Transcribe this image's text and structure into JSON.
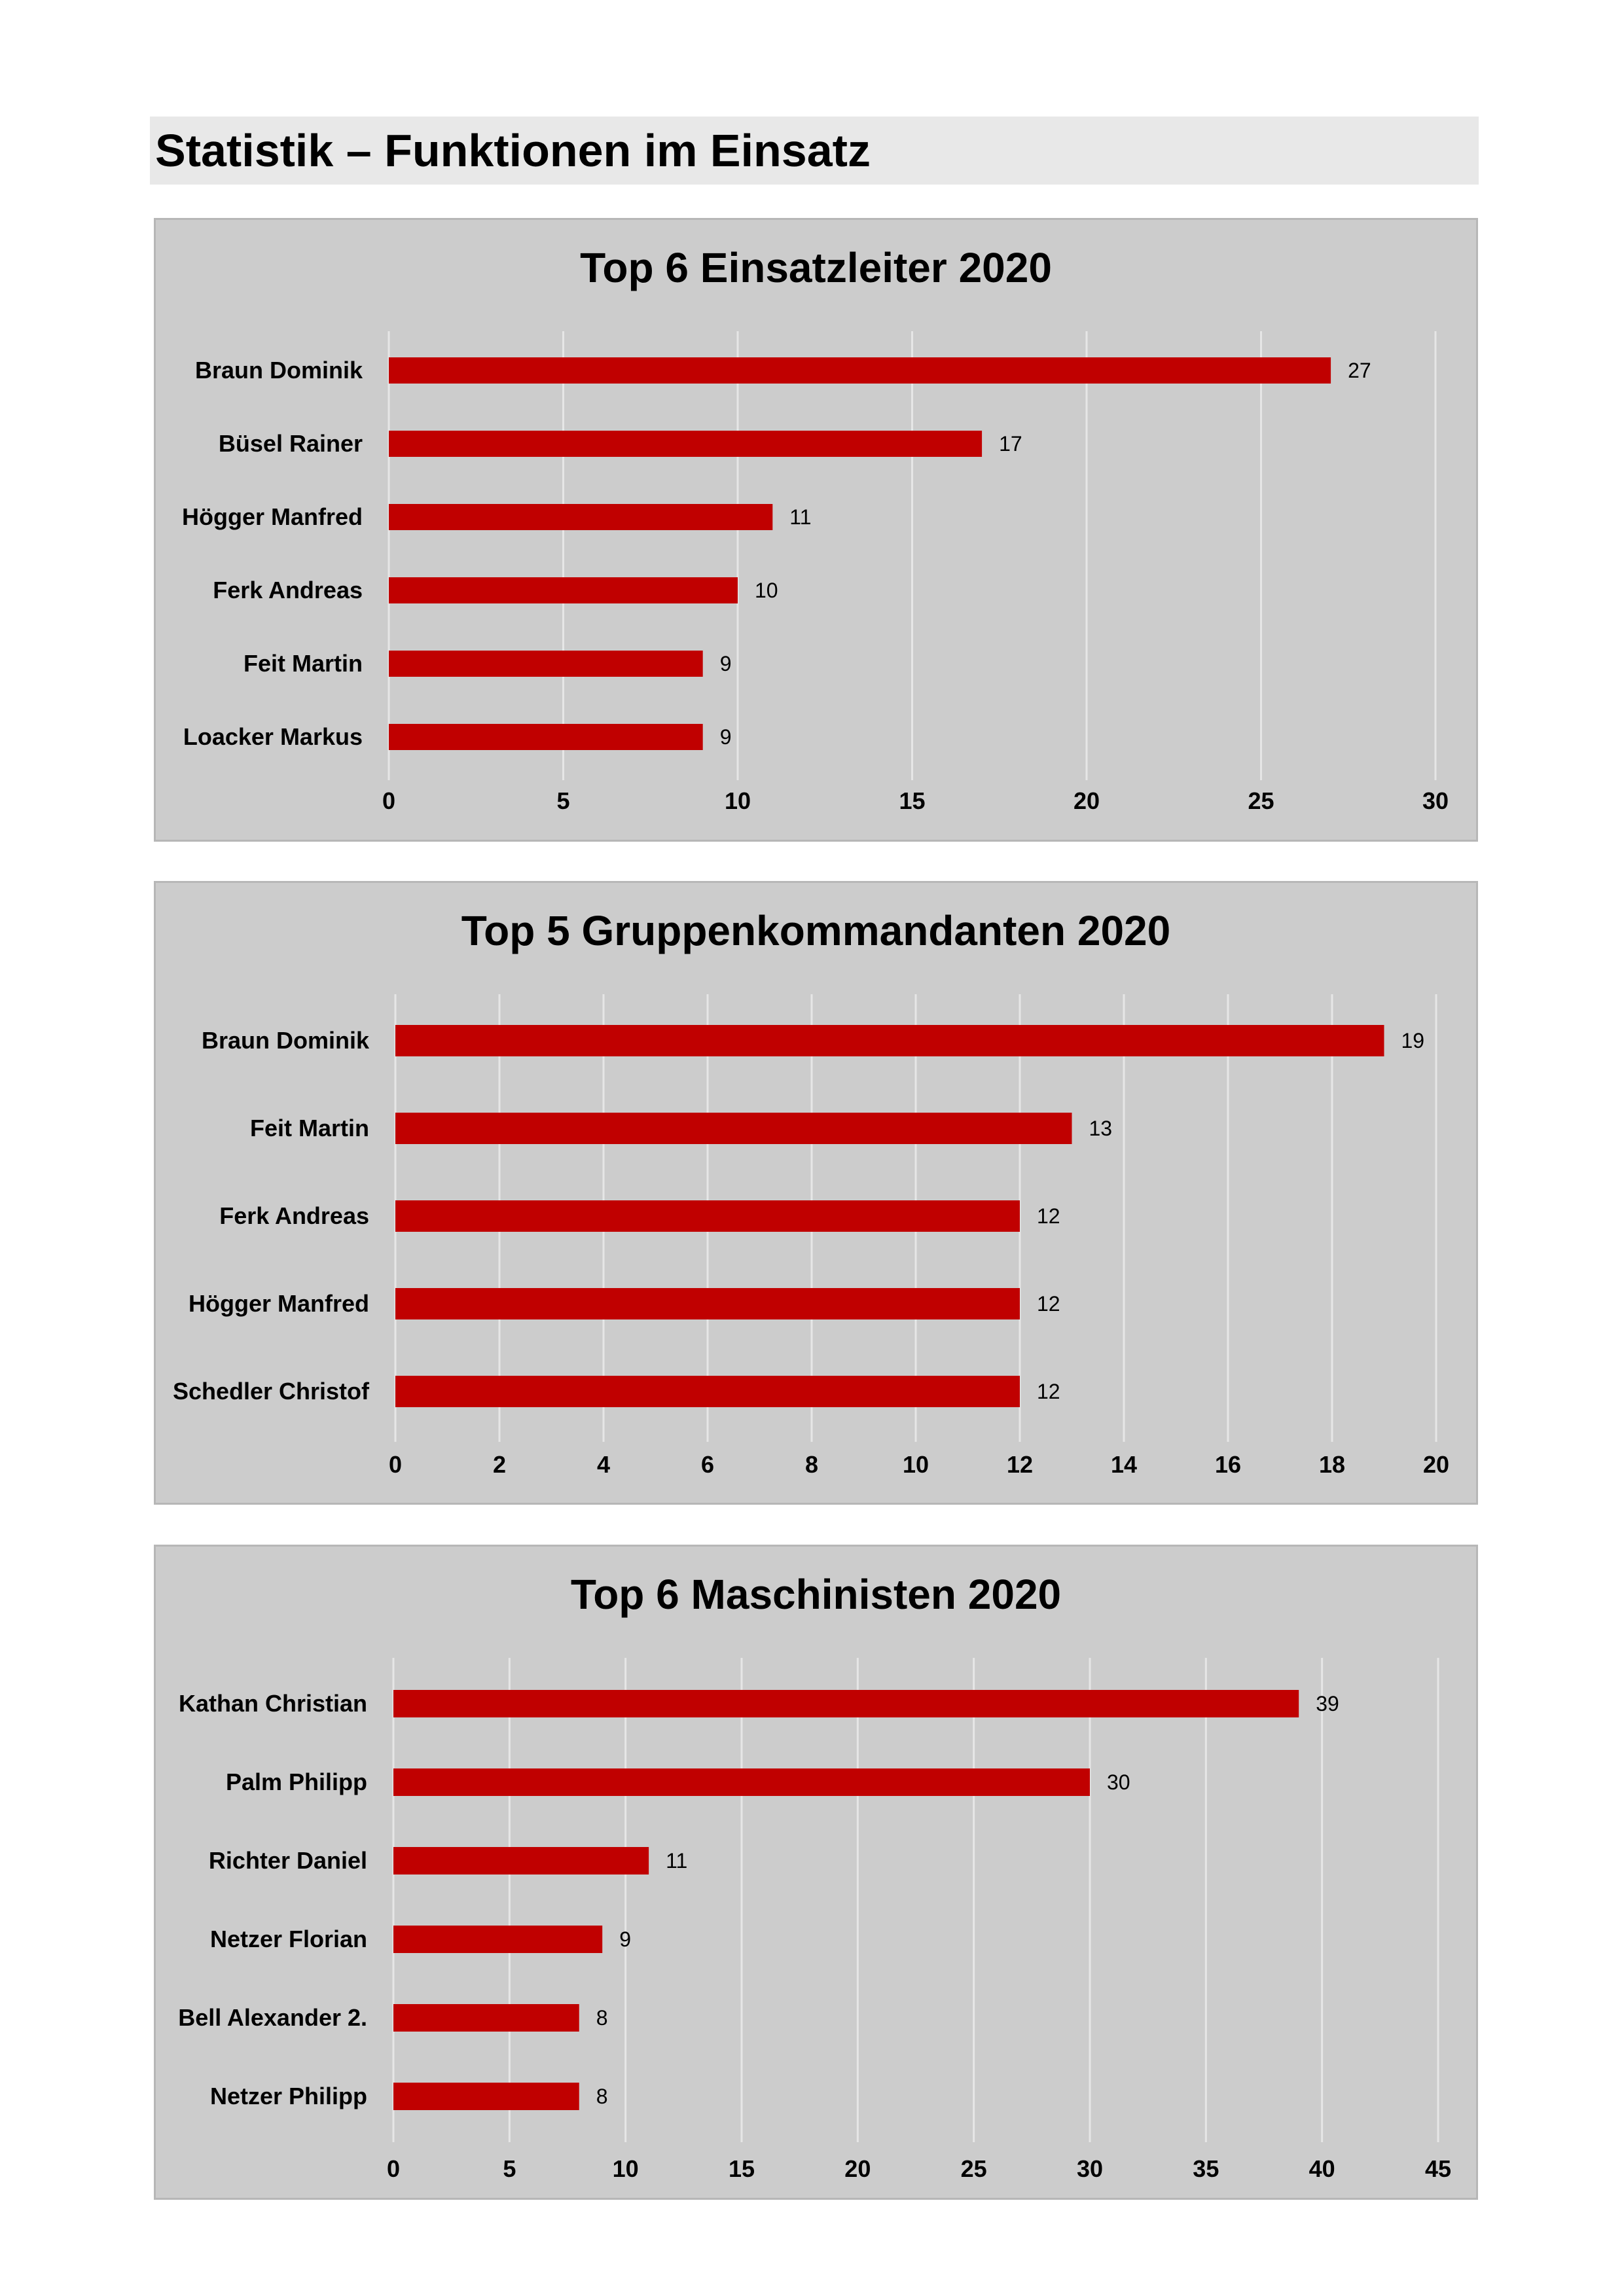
{
  "page": {
    "heading": "Statistik – Funktionen im Einsatz"
  },
  "colors": {
    "bar": "#c00000",
    "panel": "#cccccc",
    "grid": "#e6e6e6"
  },
  "chart_data": [
    {
      "type": "bar",
      "orientation": "horizontal",
      "title": "Top 6 Einsatzleiter 2020",
      "categories": [
        "Braun Dominik",
        "Büsel Rainer",
        "Högger Manfred",
        "Ferk Andreas",
        "Feit Martin",
        "Loacker Markus"
      ],
      "values": [
        27,
        17,
        11,
        10,
        9,
        9
      ],
      "xlim": [
        0,
        30
      ],
      "xticks": [
        "0",
        "5",
        "10",
        "15",
        "20",
        "25",
        "30"
      ],
      "xlabel": "",
      "ylabel": "",
      "grid": true,
      "legend": "none"
    },
    {
      "type": "bar",
      "orientation": "horizontal",
      "title": "Top 5 Gruppenkommandanten 2020",
      "categories": [
        "Braun Dominik",
        "Feit Martin",
        "Ferk Andreas",
        "Högger Manfred",
        "Schedler Christof"
      ],
      "values": [
        19,
        13,
        12,
        12,
        12
      ],
      "xlim": [
        0,
        20
      ],
      "xticks": [
        "0",
        "2",
        "4",
        "6",
        "8",
        "10",
        "12",
        "14",
        "16",
        "18",
        "20"
      ],
      "xlabel": "",
      "ylabel": "",
      "grid": true,
      "legend": "none"
    },
    {
      "type": "bar",
      "orientation": "horizontal",
      "title": "Top 6 Maschinisten 2020",
      "categories": [
        "Kathan Christian",
        "Palm Philipp",
        "Richter Daniel",
        "Netzer Florian",
        "Bell Alexander 2.",
        "Netzer Philipp"
      ],
      "values": [
        39,
        30,
        11,
        9,
        8,
        8
      ],
      "xlim": [
        0,
        45
      ],
      "xticks": [
        "0",
        "5",
        "10",
        "15",
        "20",
        "25",
        "30",
        "35",
        "40",
        "45"
      ],
      "xlabel": "",
      "ylabel": "",
      "grid": true,
      "legend": "none"
    }
  ]
}
